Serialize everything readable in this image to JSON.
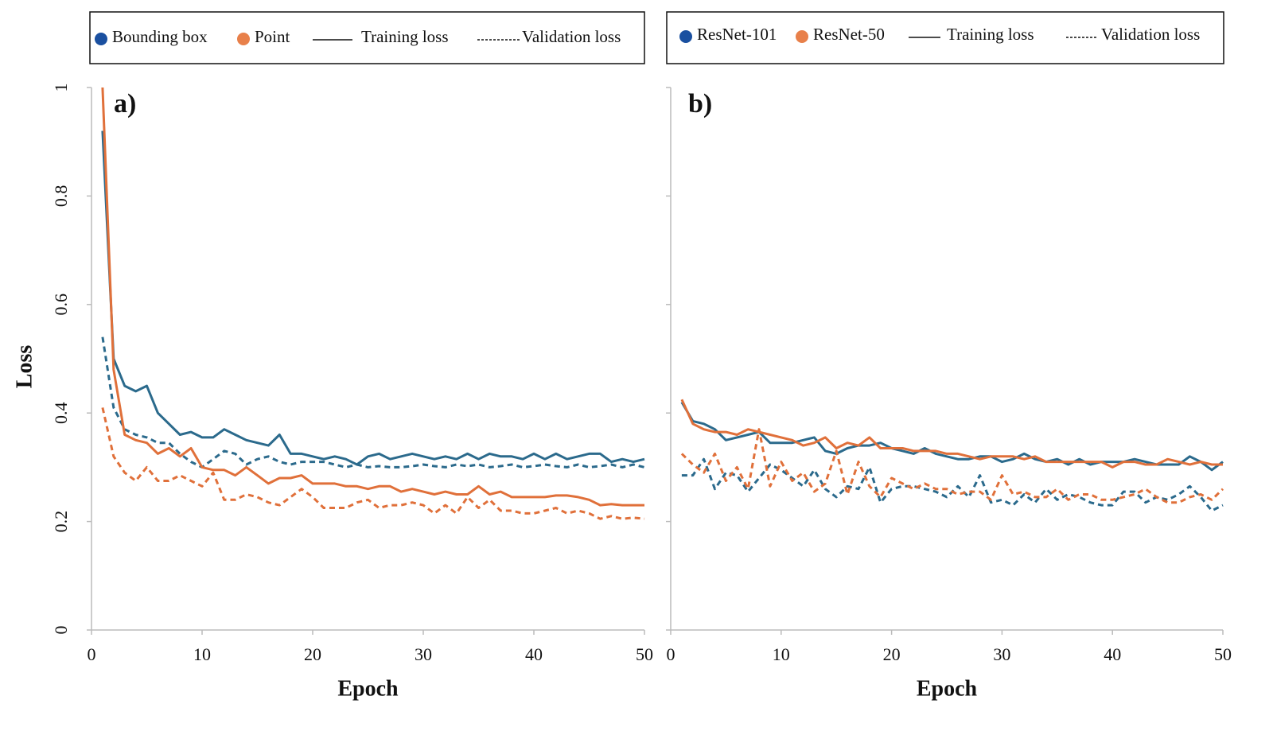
{
  "chart_data": [
    {
      "type": "line",
      "panel_label": "a)",
      "xlabel": "Epoch",
      "ylabel": "Loss",
      "ytick_labels": true,
      "x": [
        1,
        2,
        3,
        4,
        5,
        6,
        7,
        8,
        9,
        10,
        11,
        12,
        13,
        14,
        15,
        16,
        17,
        18,
        19,
        20,
        21,
        22,
        23,
        24,
        25,
        26,
        27,
        28,
        29,
        30,
        31,
        32,
        33,
        34,
        35,
        36,
        37,
        38,
        39,
        40,
        41,
        42,
        43,
        44,
        45,
        46,
        47,
        48,
        49,
        50
      ],
      "xlim": [
        0,
        50
      ],
      "xticks": [
        0,
        10,
        20,
        30,
        40,
        50
      ],
      "ylim": [
        0,
        1
      ],
      "yticks": [
        0,
        0.2,
        0.4,
        0.6,
        0.8,
        1
      ],
      "styles": [
        {
          "name": "Training loss",
          "dash": "solid"
        },
        {
          "name": "Validation loss",
          "dash": "dashed"
        }
      ],
      "groups": [
        {
          "name": "Bounding box",
          "color": "#2b6a8c",
          "marker_color": "#1a50a0",
          "training": [
            0.92,
            0.5,
            0.45,
            0.44,
            0.45,
            0.4,
            0.38,
            0.36,
            0.365,
            0.355,
            0.355,
            0.37,
            0.36,
            0.35,
            0.345,
            0.34,
            0.36,
            0.325,
            0.325,
            0.32,
            0.315,
            0.32,
            0.315,
            0.305,
            0.32,
            0.325,
            0.315,
            0.32,
            0.325,
            0.32,
            0.315,
            0.32,
            0.315,
            0.325,
            0.315,
            0.325,
            0.32,
            0.32,
            0.315,
            0.325,
            0.315,
            0.325,
            0.315,
            0.32,
            0.325,
            0.325,
            0.31,
            0.315,
            0.31,
            0.315
          ],
          "validation": [
            0.54,
            0.41,
            0.37,
            0.36,
            0.355,
            0.345,
            0.345,
            0.325,
            0.31,
            0.3,
            0.315,
            0.33,
            0.325,
            0.305,
            0.315,
            0.32,
            0.31,
            0.305,
            0.31,
            0.31,
            0.31,
            0.305,
            0.3,
            0.305,
            0.3,
            0.302,
            0.3,
            0.3,
            0.302,
            0.305,
            0.302,
            0.3,
            0.305,
            0.302,
            0.305,
            0.3,
            0.302,
            0.305,
            0.3,
            0.302,
            0.305,
            0.302,
            0.3,
            0.305,
            0.3,
            0.302,
            0.305,
            0.3,
            0.305,
            0.3
          ]
        },
        {
          "name": "Point",
          "color": "#e0703a",
          "marker_color": "#e8804a",
          "training": [
            1.0,
            0.48,
            0.36,
            0.35,
            0.345,
            0.325,
            0.335,
            0.32,
            0.335,
            0.3,
            0.295,
            0.295,
            0.285,
            0.3,
            0.285,
            0.27,
            0.28,
            0.28,
            0.285,
            0.27,
            0.27,
            0.27,
            0.265,
            0.265,
            0.26,
            0.265,
            0.265,
            0.255,
            0.26,
            0.255,
            0.25,
            0.255,
            0.25,
            0.25,
            0.265,
            0.25,
            0.255,
            0.245,
            0.245,
            0.245,
            0.245,
            0.248,
            0.248,
            0.245,
            0.24,
            0.23,
            0.232,
            0.23,
            0.23,
            0.23
          ],
          "validation": [
            0.41,
            0.32,
            0.29,
            0.275,
            0.3,
            0.275,
            0.275,
            0.285,
            0.275,
            0.265,
            0.29,
            0.24,
            0.24,
            0.25,
            0.245,
            0.235,
            0.23,
            0.245,
            0.26,
            0.245,
            0.225,
            0.225,
            0.225,
            0.235,
            0.24,
            0.225,
            0.23,
            0.23,
            0.235,
            0.23,
            0.215,
            0.23,
            0.215,
            0.245,
            0.225,
            0.24,
            0.22,
            0.22,
            0.215,
            0.215,
            0.22,
            0.225,
            0.215,
            0.22,
            0.215,
            0.205,
            0.21,
            0.205,
            0.207,
            0.205
          ]
        }
      ]
    },
    {
      "type": "line",
      "panel_label": "b)",
      "xlabel": "Epoch",
      "ytick_labels": false,
      "x": [
        1,
        2,
        3,
        4,
        5,
        6,
        7,
        8,
        9,
        10,
        11,
        12,
        13,
        14,
        15,
        16,
        17,
        18,
        19,
        20,
        21,
        22,
        23,
        24,
        25,
        26,
        27,
        28,
        29,
        30,
        31,
        32,
        33,
        34,
        35,
        36,
        37,
        38,
        39,
        40,
        41,
        42,
        43,
        44,
        45,
        46,
        47,
        48,
        49,
        50
      ],
      "xlim": [
        0,
        50
      ],
      "xticks": [
        0,
        10,
        20,
        30,
        40,
        50
      ],
      "ylim": [
        0,
        1
      ],
      "yticks": [
        0,
        0.2,
        0.4,
        0.6,
        0.8,
        1
      ],
      "styles": [
        {
          "name": "Training loss",
          "dash": "solid"
        },
        {
          "name": "Validation loss",
          "dash": "dashed"
        }
      ],
      "groups": [
        {
          "name": "ResNet-101",
          "color": "#2b6a8c",
          "marker_color": "#1a50a0",
          "training": [
            0.42,
            0.385,
            0.38,
            0.37,
            0.35,
            0.355,
            0.36,
            0.365,
            0.345,
            0.345,
            0.345,
            0.35,
            0.355,
            0.33,
            0.325,
            0.335,
            0.34,
            0.34,
            0.345,
            0.335,
            0.33,
            0.325,
            0.335,
            0.325,
            0.32,
            0.315,
            0.315,
            0.32,
            0.32,
            0.31,
            0.315,
            0.325,
            0.315,
            0.31,
            0.315,
            0.305,
            0.315,
            0.305,
            0.31,
            0.31,
            0.31,
            0.315,
            0.31,
            0.305,
            0.305,
            0.305,
            0.32,
            0.31,
            0.295,
            0.31
          ],
          "validation": [
            0.285,
            0.285,
            0.315,
            0.26,
            0.29,
            0.285,
            0.255,
            0.28,
            0.305,
            0.295,
            0.28,
            0.265,
            0.295,
            0.26,
            0.245,
            0.265,
            0.26,
            0.3,
            0.235,
            0.26,
            0.265,
            0.265,
            0.26,
            0.255,
            0.245,
            0.265,
            0.245,
            0.285,
            0.235,
            0.24,
            0.23,
            0.25,
            0.235,
            0.26,
            0.24,
            0.25,
            0.245,
            0.235,
            0.23,
            0.23,
            0.255,
            0.255,
            0.235,
            0.245,
            0.24,
            0.25,
            0.265,
            0.245,
            0.22,
            0.23
          ]
        },
        {
          "name": "ResNet-50",
          "color": "#e0703a",
          "marker_color": "#e8804a",
          "training": [
            0.425,
            0.38,
            0.37,
            0.365,
            0.365,
            0.36,
            0.37,
            0.365,
            0.36,
            0.355,
            0.35,
            0.34,
            0.345,
            0.355,
            0.335,
            0.345,
            0.34,
            0.355,
            0.335,
            0.335,
            0.335,
            0.33,
            0.33,
            0.33,
            0.325,
            0.325,
            0.32,
            0.315,
            0.32,
            0.32,
            0.32,
            0.315,
            0.32,
            0.31,
            0.31,
            0.31,
            0.31,
            0.31,
            0.31,
            0.3,
            0.31,
            0.31,
            0.305,
            0.305,
            0.315,
            0.31,
            0.305,
            0.31,
            0.305,
            0.305
          ],
          "validation": [
            0.325,
            0.305,
            0.29,
            0.325,
            0.275,
            0.3,
            0.26,
            0.37,
            0.265,
            0.31,
            0.275,
            0.29,
            0.255,
            0.27,
            0.33,
            0.25,
            0.31,
            0.265,
            0.245,
            0.28,
            0.27,
            0.26,
            0.27,
            0.26,
            0.26,
            0.25,
            0.255,
            0.255,
            0.24,
            0.285,
            0.25,
            0.255,
            0.245,
            0.245,
            0.26,
            0.24,
            0.25,
            0.25,
            0.24,
            0.24,
            0.245,
            0.25,
            0.26,
            0.245,
            0.235,
            0.235,
            0.245,
            0.25,
            0.24,
            0.26
          ]
        }
      ]
    }
  ]
}
